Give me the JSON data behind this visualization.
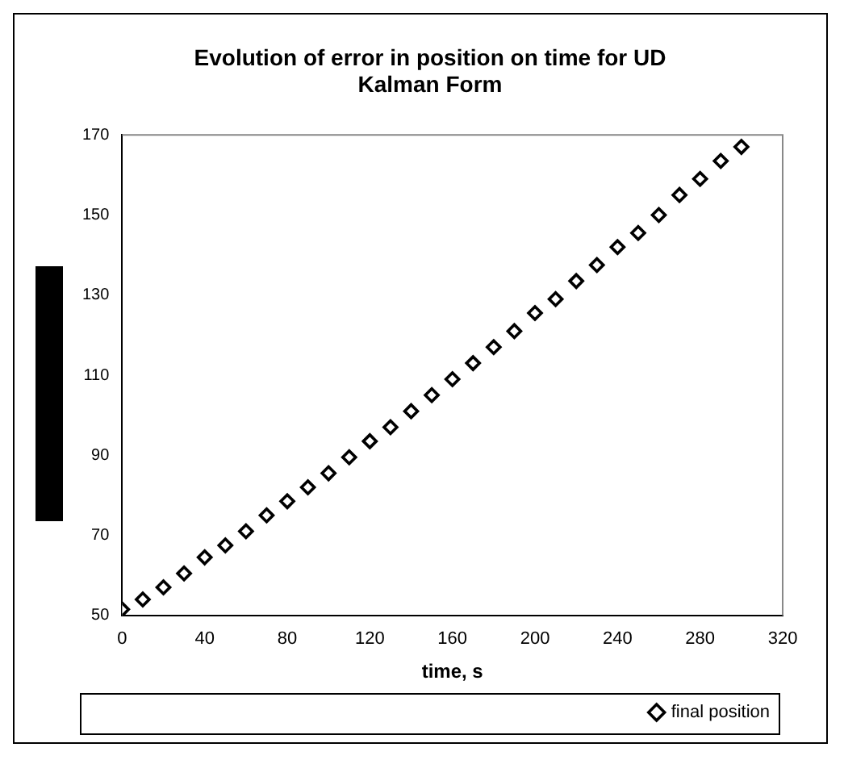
{
  "chart_data": {
    "type": "scatter",
    "title": "Evolution of error in position on time for UD Kalman Form",
    "xlabel": "time, s",
    "x": [
      0,
      10,
      20,
      30,
      40,
      50,
      60,
      70,
      80,
      90,
      100,
      110,
      120,
      130,
      140,
      150,
      160,
      170,
      180,
      190,
      200,
      210,
      220,
      230,
      240,
      250,
      260,
      270,
      280,
      290,
      300
    ],
    "series": [
      {
        "name": "final position",
        "color": "#000000",
        "values": [
          51.5,
          54,
          57,
          60.5,
          64.5,
          67.5,
          71,
          75,
          78.5,
          82,
          85.5,
          89.5,
          93.5,
          97,
          101,
          105,
          109,
          113,
          117,
          121,
          125.5,
          129,
          133.5,
          137.5,
          142,
          145.5,
          150,
          155,
          159,
          163.5,
          167
        ]
      }
    ],
    "xlim": [
      0,
      320
    ],
    "xticks": [
      0,
      40,
      80,
      120,
      160,
      200,
      240,
      280,
      320
    ],
    "ylim": [
      50,
      170
    ],
    "yticks": [
      50,
      70,
      90,
      110,
      130,
      150,
      170
    ],
    "grid": false,
    "legend": "bottom right",
    "marker": "diamond"
  }
}
